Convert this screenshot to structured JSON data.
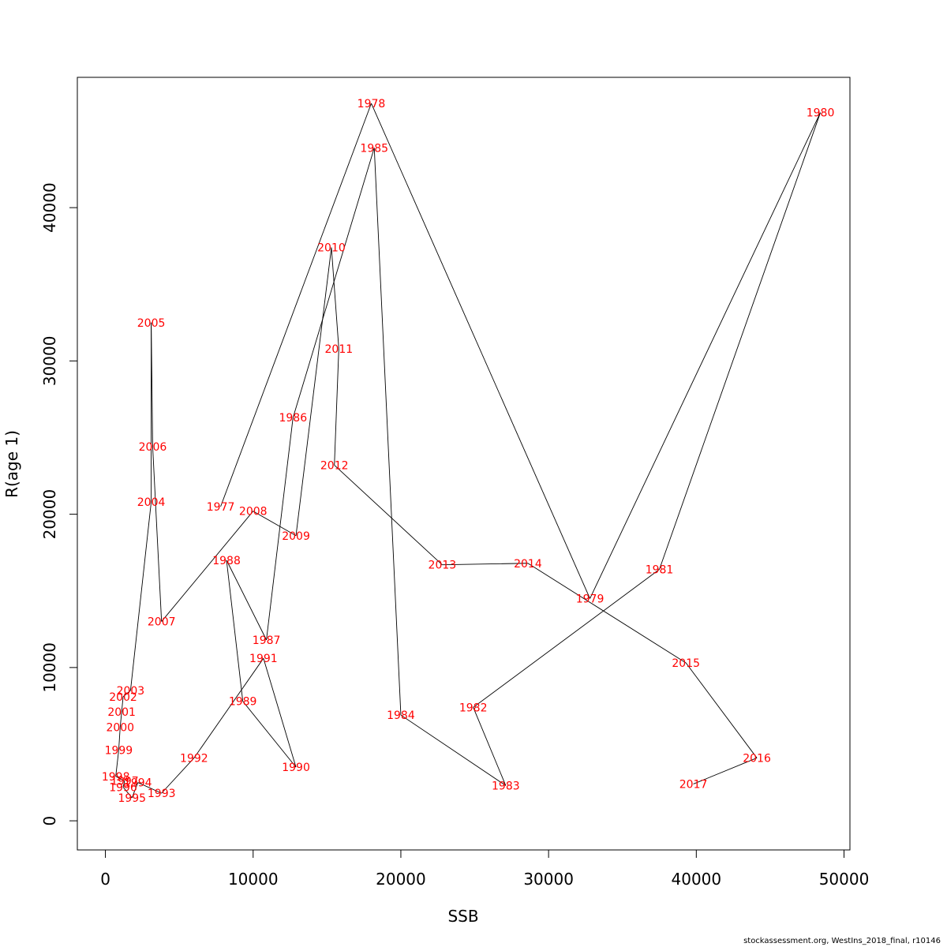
{
  "chart_data": {
    "type": "line",
    "xlabel": "SSB",
    "ylabel": "R(age 1)",
    "xlim": [
      -1900,
      50400
    ],
    "ylim": [
      -1900,
      48500
    ],
    "xticks": [
      0,
      10000,
      20000,
      30000,
      40000,
      50000
    ],
    "yticks": [
      0,
      10000,
      20000,
      30000,
      40000
    ],
    "point_label_color": "#ff0000",
    "line_color": "#000000",
    "points": [
      {
        "year": "1977",
        "ssb": 7800,
        "r": 20500
      },
      {
        "year": "1978",
        "ssb": 18000,
        "r": 46800
      },
      {
        "year": "1979",
        "ssb": 32800,
        "r": 14500
      },
      {
        "year": "1980",
        "ssb": 48400,
        "r": 46200
      },
      {
        "year": "1981",
        "ssb": 37500,
        "r": 16400
      },
      {
        "year": "1982",
        "ssb": 24900,
        "r": 7400
      },
      {
        "year": "1983",
        "ssb": 27100,
        "r": 2300
      },
      {
        "year": "1984",
        "ssb": 20000,
        "r": 6900
      },
      {
        "year": "1985",
        "ssb": 18200,
        "r": 43900
      },
      {
        "year": "1986",
        "ssb": 12700,
        "r": 26300
      },
      {
        "year": "1987",
        "ssb": 10900,
        "r": 11800
      },
      {
        "year": "1988",
        "ssb": 8200,
        "r": 17000
      },
      {
        "year": "1989",
        "ssb": 9300,
        "r": 7800
      },
      {
        "year": "1990",
        "ssb": 12900,
        "r": 3500
      },
      {
        "year": "1991",
        "ssb": 10700,
        "r": 10600
      },
      {
        "year": "1992",
        "ssb": 6000,
        "r": 4100
      },
      {
        "year": "1993",
        "ssb": 3800,
        "r": 1800
      },
      {
        "year": "1994",
        "ssb": 2200,
        "r": 2500
      },
      {
        "year": "1995",
        "ssb": 1800,
        "r": 1500
      },
      {
        "year": "1996",
        "ssb": 1200,
        "r": 2200
      },
      {
        "year": "1997",
        "ssb": 1300,
        "r": 2600
      },
      {
        "year": "1998",
        "ssb": 700,
        "r": 2900
      },
      {
        "year": "1999",
        "ssb": 900,
        "r": 4600
      },
      {
        "year": "2000",
        "ssb": 1000,
        "r": 6100
      },
      {
        "year": "2001",
        "ssb": 1100,
        "r": 7100
      },
      {
        "year": "2002",
        "ssb": 1200,
        "r": 8100
      },
      {
        "year": "2003",
        "ssb": 1700,
        "r": 8500
      },
      {
        "year": "2004",
        "ssb": 3100,
        "r": 20800
      },
      {
        "year": "2005",
        "ssb": 3100,
        "r": 32500
      },
      {
        "year": "2006",
        "ssb": 3200,
        "r": 24400
      },
      {
        "year": "2007",
        "ssb": 3800,
        "r": 13000
      },
      {
        "year": "2008",
        "ssb": 10000,
        "r": 20200
      },
      {
        "year": "2009",
        "ssb": 12900,
        "r": 18600
      },
      {
        "year": "2010",
        "ssb": 15300,
        "r": 37400
      },
      {
        "year": "2011",
        "ssb": 15800,
        "r": 30800
      },
      {
        "year": "2012",
        "ssb": 15500,
        "r": 23200
      },
      {
        "year": "2013",
        "ssb": 22800,
        "r": 16700
      },
      {
        "year": "2014",
        "ssb": 28600,
        "r": 16800
      },
      {
        "year": "2015",
        "ssb": 39300,
        "r": 10300
      },
      {
        "year": "2016",
        "ssb": 44100,
        "r": 4100
      },
      {
        "year": "2017",
        "ssb": 39800,
        "r": 2400
      }
    ]
  },
  "footer": {
    "text": "stockassessment.org, WestIns_2018_final, r10146"
  }
}
